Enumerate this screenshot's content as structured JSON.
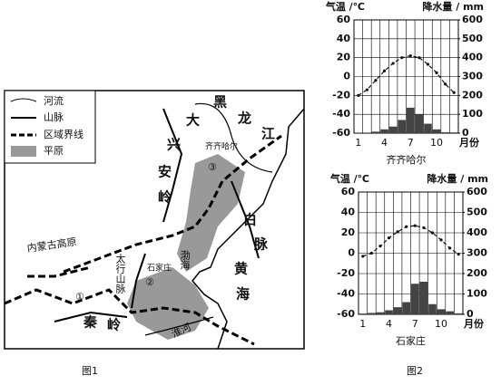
{
  "map": {
    "caption": "图1",
    "legend": [
      "河流",
      "山脉",
      "区域界线",
      "平原"
    ],
    "labels": {
      "hei": "黑",
      "long": "龙",
      "jiang": "江",
      "da": "大",
      "xing": "兴",
      "an": "安",
      "ling": "岭",
      "qiqihar": "齐齐哈尔",
      "three": "③",
      "bai": "白",
      "mai": "脉",
      "huang": "黄",
      "hai": "海",
      "bohai": "渤海",
      "neimenggu": "内蒙古高原",
      "taihang": "太行山脉",
      "shijiazhuang": "石家庄",
      "two": "②",
      "one": "①",
      "qin": "秦",
      "qinling": "岭",
      "huaihe": "淮河"
    }
  },
  "figure2_caption": "图2",
  "chart_data": [
    {
      "type": "combo",
      "title": "齐齐哈尔",
      "ylabel": "气温 /℃",
      "y2label": "降水量 / mm",
      "xlabel": "月份",
      "x": [
        1,
        2,
        3,
        4,
        5,
        6,
        7,
        8,
        9,
        10,
        11,
        12
      ],
      "xlim": [
        0.5,
        12.5
      ],
      "xticks": [
        1,
        4,
        7,
        10
      ],
      "ylim": [
        -60,
        60
      ],
      "yticks": [
        -60,
        -40,
        -20,
        0,
        20,
        40,
        60
      ],
      "y2lim": [
        0,
        600
      ],
      "y2ticks": [
        0,
        100,
        200,
        300,
        400,
        500,
        600
      ],
      "grid": true,
      "series": [
        {
          "type": "line",
          "color": "#111",
          "values": [
            -20,
            -14,
            -4,
            6,
            14,
            20,
            22,
            20,
            13,
            4,
            -8,
            -17
          ]
        },
        {
          "type": "bar",
          "axis": "y2",
          "color": "#444",
          "values": [
            3,
            3,
            8,
            20,
            35,
            70,
            135,
            100,
            50,
            20,
            5,
            4
          ]
        }
      ]
    },
    {
      "type": "combo",
      "title": "石家庄",
      "ylabel": "气温 /℃",
      "y2label": "降水量 / mm",
      "xlabel": "月份",
      "x": [
        1,
        2,
        3,
        4,
        5,
        6,
        7,
        8,
        9,
        10,
        11,
        12
      ],
      "xlim": [
        0.5,
        12.5
      ],
      "xticks": [
        1,
        4,
        7,
        10
      ],
      "ylim": [
        -60,
        60
      ],
      "yticks": [
        -60,
        -40,
        -20,
        0,
        20,
        40,
        60
      ],
      "y2lim": [
        0,
        600
      ],
      "y2ticks": [
        0,
        100,
        200,
        300,
        400,
        500,
        600
      ],
      "grid": true,
      "series": [
        {
          "type": "line",
          "color": "#111",
          "values": [
            -3,
            0,
            7,
            15,
            21,
            26,
            27,
            25,
            20,
            13,
            5,
            -1
          ]
        },
        {
          "type": "bar",
          "axis": "y2",
          "color": "#444",
          "values": [
            4,
            7,
            10,
            20,
            35,
            60,
            150,
            160,
            50,
            25,
            15,
            5
          ]
        }
      ]
    }
  ]
}
